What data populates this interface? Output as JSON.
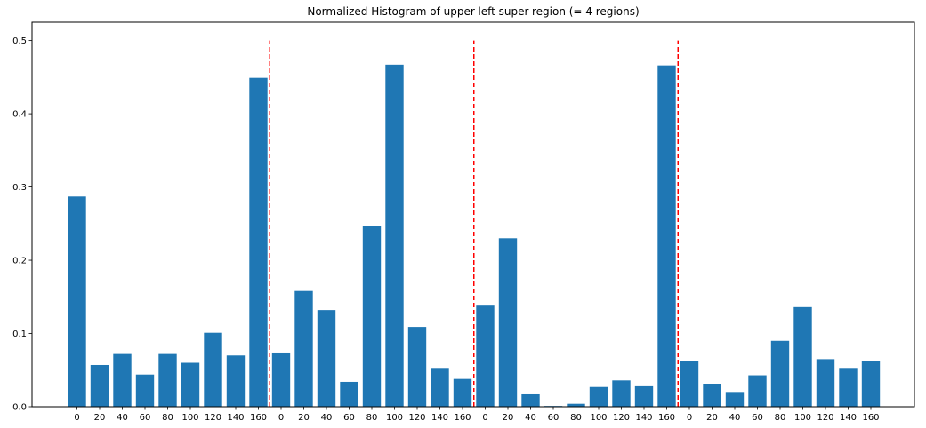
{
  "chart_data": {
    "type": "bar",
    "title": "Normalized Histogram of upper-left super-region (= 4 regions)",
    "xlabel": "",
    "ylabel": "",
    "categories": [
      "0",
      "20",
      "40",
      "60",
      "80",
      "100",
      "120",
      "140",
      "160",
      "0",
      "20",
      "40",
      "60",
      "80",
      "100",
      "120",
      "140",
      "160",
      "0",
      "20",
      "40",
      "60",
      "80",
      "100",
      "120",
      "140",
      "160",
      "0",
      "20",
      "40",
      "60",
      "80",
      "100",
      "120",
      "140",
      "160"
    ],
    "values": [
      0.287,
      0.057,
      0.072,
      0.044,
      0.072,
      0.06,
      0.101,
      0.07,
      0.449,
      0.074,
      0.158,
      0.132,
      0.034,
      0.247,
      0.467,
      0.109,
      0.053,
      0.038,
      0.138,
      0.23,
      0.017,
      0.001,
      0.004,
      0.027,
      0.036,
      0.028,
      0.466,
      0.063,
      0.031,
      0.019,
      0.043,
      0.09,
      0.136,
      0.065,
      0.053,
      0.063
    ],
    "ylim": [
      0,
      0.525
    ],
    "yticks": [
      "0.0",
      "0.1",
      "0.2",
      "0.3",
      "0.4",
      "0.5"
    ],
    "region_separators": {
      "after_bar_indices": [
        8,
        17,
        26
      ],
      "y_top": 0.5,
      "color": "#ff0000",
      "style": "dashed"
    },
    "grid": false,
    "bar_color": "#1f77b4"
  }
}
